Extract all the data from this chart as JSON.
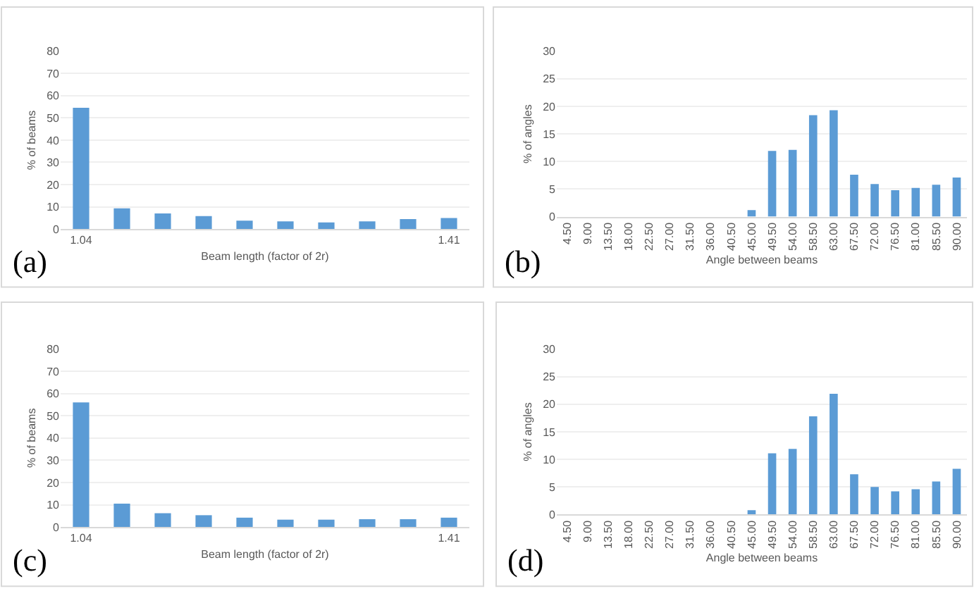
{
  "chart_data": [
    {
      "type": "bar",
      "xlabel": "Beam length (factor of 2r)",
      "ylabel": "% of beams",
      "categories": [
        "1.04",
        null,
        null,
        null,
        null,
        null,
        null,
        null,
        null,
        "1.41"
      ],
      "series": [
        {
          "color": "#5b9bd5",
          "values": [
            54.5,
            9.3,
            7,
            5.8,
            3.8,
            3.5,
            3,
            3.5,
            4.5,
            5
          ]
        }
      ],
      "ylim": [
        0,
        80
      ],
      "yticks": [
        0,
        10,
        20,
        30,
        40,
        50,
        60,
        70,
        80
      ],
      "grid": "y",
      "annotations": [
        "(a)"
      ]
    },
    {
      "type": "bar",
      "xlabel": "Angle between beams",
      "ylabel": "% of angles",
      "categories": [
        "4.50",
        "9.00",
        "13.50",
        "18.00",
        "22.50",
        "27.00",
        "31.50",
        "36.00",
        "40.50",
        "45.00",
        "49.50",
        "54.00",
        "58.50",
        "63.00",
        "67.50",
        "72.00",
        "76.50",
        "81.00",
        "85.50",
        "90.00"
      ],
      "series": [
        {
          "color": "#5b9bd5",
          "values": [
            0,
            0,
            0,
            0,
            0,
            0,
            0,
            0,
            0,
            1.2,
            11.9,
            12.1,
            18.4,
            19.3,
            7.6,
            5.9,
            4.8,
            5.2,
            5.8,
            7.1
          ]
        }
      ],
      "ylim": [
        0,
        30
      ],
      "yticks": [
        0,
        5,
        10,
        15,
        20,
        25,
        30
      ],
      "grid": "y",
      "annotations": [
        "(b)"
      ]
    },
    {
      "type": "bar",
      "xlabel": "Beam length (factor of 2r)",
      "ylabel": "% of beams",
      "categories": [
        "1.04",
        null,
        null,
        null,
        null,
        null,
        null,
        null,
        null,
        "1.41"
      ],
      "series": [
        {
          "color": "#5b9bd5",
          "values": [
            56,
            10.5,
            6.2,
            5.3,
            4.2,
            3.3,
            3.3,
            3.5,
            3.5,
            4.2
          ]
        }
      ],
      "ylim": [
        0,
        80
      ],
      "yticks": [
        0,
        10,
        20,
        30,
        40,
        50,
        60,
        70,
        80
      ],
      "grid": "y",
      "annotations": [
        "(c)"
      ]
    },
    {
      "type": "bar",
      "xlabel": "Angle between beams",
      "ylabel": "% of angles",
      "categories": [
        "4.50",
        "9.00",
        "13.50",
        "18.00",
        "22.50",
        "27.00",
        "31.50",
        "36.00",
        "40.50",
        "45.00",
        "49.50",
        "54.00",
        "58.50",
        "63.00",
        "67.50",
        "72.00",
        "76.50",
        "81.00",
        "85.50",
        "90.00"
      ],
      "series": [
        {
          "color": "#5b9bd5",
          "values": [
            0,
            0,
            0,
            0,
            0,
            0,
            0,
            0,
            0,
            0.8,
            11.1,
            11.9,
            17.8,
            21.9,
            7.3,
            5,
            4.2,
            4.6,
            6,
            8.3
          ]
        }
      ],
      "ylim": [
        0,
        30
      ],
      "yticks": [
        0,
        5,
        10,
        15,
        20,
        25,
        30
      ],
      "grid": "y",
      "annotations": [
        "(d)"
      ]
    }
  ]
}
